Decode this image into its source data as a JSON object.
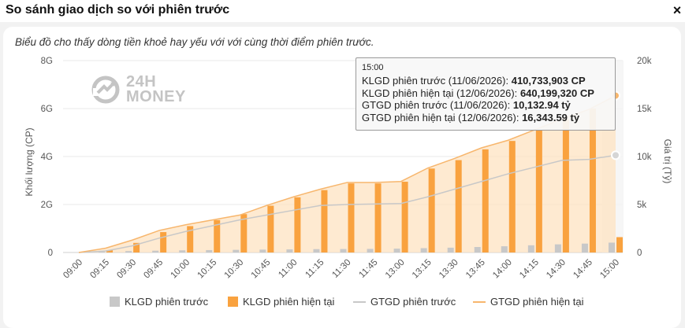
{
  "dialog": {
    "title": "So sánh giao dịch so với phiên trước",
    "close_label": "×"
  },
  "subtitle": "Biểu đồ cho thấy dòng tiền khoẻ hay yếu với với cùng thời điểm phiên trước.",
  "logo": {
    "line1": "24H",
    "line2": "MONEY",
    "icon": "logo-mark-icon"
  },
  "tooltip": {
    "time": "15:00",
    "rows": [
      {
        "label": "KLGD phiên trước (11/06/2026):",
        "value": "410,733,903 CP"
      },
      {
        "label": "KLGD phiên hiện tại (12/06/2026):",
        "value": "640,199,320 CP"
      },
      {
        "label": "GTGD phiên trước (11/06/2026):",
        "value": "10,132.94 tỷ"
      },
      {
        "label": "GTGD phiên hiện tại (12/06/2026):",
        "value": "16,343.59 tỷ"
      }
    ]
  },
  "legend": [
    {
      "label": "KLGD phiên trước",
      "kind": "bar",
      "color": "#c8c8c8"
    },
    {
      "label": "KLGD phiên hiện tại",
      "kind": "bar",
      "color": "#f9a23f"
    },
    {
      "label": "GTGD phiên trước",
      "kind": "line",
      "color": "#c8c8c8"
    },
    {
      "label": "GTGD phiên hiện tại",
      "kind": "line",
      "color": "#f7b66d"
    }
  ],
  "chart_data": {
    "type": "bar",
    "categories": [
      "09:00",
      "09:15",
      "09:30",
      "09:45",
      "10:00",
      "10:15",
      "10:30",
      "10:45",
      "11:00",
      "11:15",
      "11:30",
      "11:45",
      "13:00",
      "13:15",
      "13:30",
      "13:45",
      "14:00",
      "14:15",
      "14:30",
      "14:45",
      "15:00"
    ],
    "y_left": {
      "label": "Khối lượng (CP)",
      "ticks": [
        "0",
        "2G",
        "4G",
        "6G",
        "8G"
      ],
      "min": 0,
      "max": 8000000000
    },
    "y_right": {
      "label": "Giá trị (Tỷ)",
      "ticks": [
        "0",
        "5k",
        "10k",
        "15k",
        "20k"
      ],
      "min": 0,
      "max": 20000
    },
    "series": [
      {
        "name": "KLGD phiên trước",
        "type": "bar",
        "axis": "left",
        "values": [
          0,
          30000000,
          60000000,
          75000000,
          90000000,
          100000000,
          110000000,
          120000000,
          130000000,
          140000000,
          145000000,
          150000000,
          160000000,
          180000000,
          200000000,
          230000000,
          260000000,
          300000000,
          340000000,
          370000000,
          410733903
        ]
      },
      {
        "name": "KLGD phiên hiện tại",
        "type": "bar",
        "axis": "left",
        "values": [
          0,
          100000000,
          400000000,
          850000000,
          1100000000,
          1350000000,
          1600000000,
          1950000000,
          2300000000,
          2600000000,
          2880000000,
          2880000000,
          2950000000,
          3500000000,
          3850000000,
          4300000000,
          4650000000,
          5100000000,
          5550000000,
          6000000000,
          640199320
        ]
      },
      {
        "name": "GTGD phiên trước",
        "type": "line",
        "axis": "right",
        "values": [
          0,
          150,
          700,
          1500,
          2200,
          2800,
          3400,
          3900,
          4400,
          4900,
          5000,
          5050,
          5100,
          5800,
          6600,
          7400,
          8200,
          8900,
          9600,
          9700,
          10132.94
        ]
      },
      {
        "name": "GTGD phiên hiện tại",
        "type": "line",
        "axis": "right",
        "values": [
          0,
          450,
          1300,
          2300,
          2900,
          3400,
          3900,
          4900,
          5800,
          6600,
          7300,
          7300,
          7400,
          8800,
          9800,
          10900,
          11700,
          12800,
          13900,
          14900,
          16343.59
        ]
      }
    ],
    "grid": true,
    "legend_position": "bottom",
    "colors": {
      "prev_bar": "#c8c8c8",
      "cur_bar": "#f9a23f",
      "prev_line": "#c8c8c8",
      "cur_line": "#f7b66d",
      "cur_area": "#fde3c2"
    }
  }
}
